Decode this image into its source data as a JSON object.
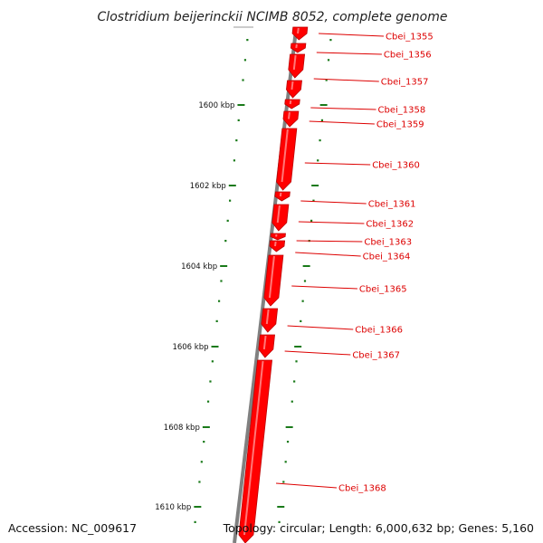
{
  "title": "Clostridium beijerinckii NCIMB 8052, complete genome",
  "footer": {
    "accession": "Accession: NC_009617",
    "topology": "Topology: circular; Length: 6,000,632 bp; Genes: 5,160"
  },
  "colors": {
    "gene": "#ff0000",
    "gene_dark": "#bb0000",
    "backbone": "#808080",
    "tick": "#1a7a1a",
    "label": "#dd0000"
  },
  "scale_labels": [
    "1600 kbp",
    "1602 kbp",
    "1604 kbp",
    "1606 kbp",
    "1608 kbp",
    "1610 kbp"
  ],
  "genes": [
    {
      "name": "Cbei_1355"
    },
    {
      "name": "Cbei_1356"
    },
    {
      "name": "Cbei_1357"
    },
    {
      "name": "Cbei_1358"
    },
    {
      "name": "Cbei_1359"
    },
    {
      "name": "Cbei_1360"
    },
    {
      "name": "Cbei_1361"
    },
    {
      "name": "Cbei_1362"
    },
    {
      "name": "Cbei_1363"
    },
    {
      "name": "Cbei_1364"
    },
    {
      "name": "Cbei_1365"
    },
    {
      "name": "Cbei_1366"
    },
    {
      "name": "Cbei_1367"
    },
    {
      "name": "Cbei_1368"
    }
  ]
}
